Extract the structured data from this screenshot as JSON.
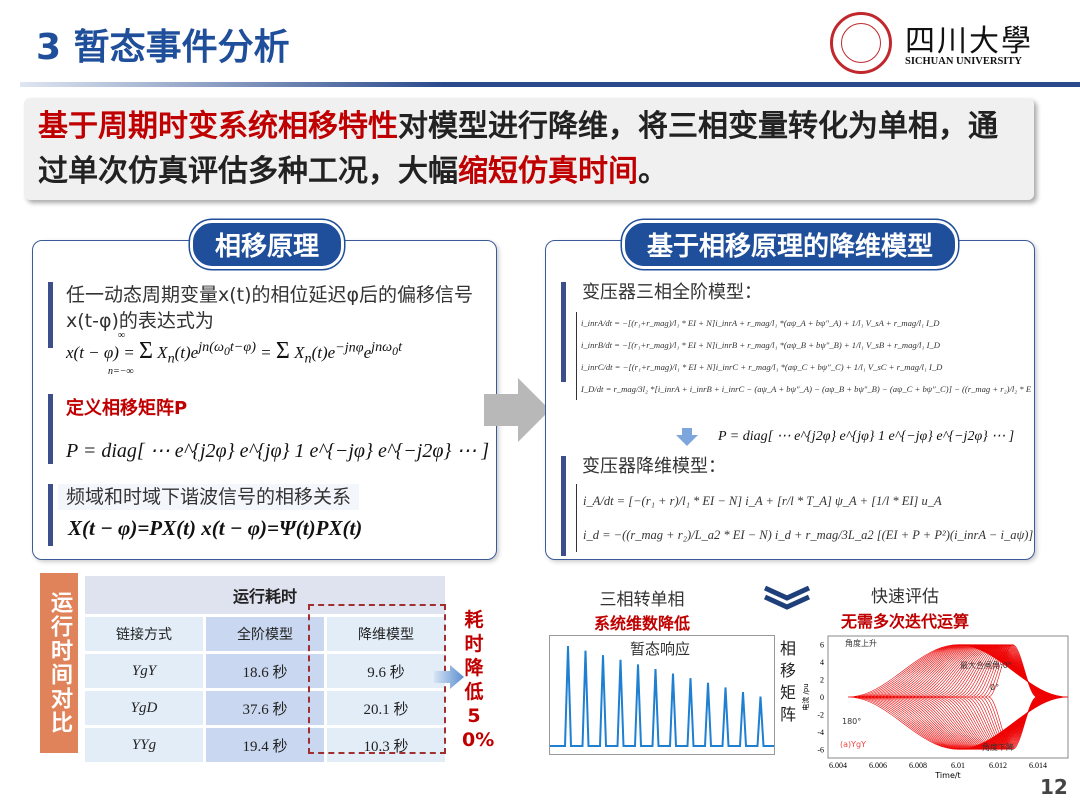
{
  "title": "3 暂态事件分析",
  "logo": {
    "name_cn": "四川大學",
    "name_en": "SICHUAN UNIVERSITY",
    "seal_text": "四川大学 1896"
  },
  "headline": {
    "part1": "基于周期时变系统相移特性",
    "part2": "对模型进行降维，将三相变量转化为单相，通过单次仿真评估多种工况，大幅",
    "part3": "缩短仿真时间",
    "part4": "。"
  },
  "left_panel": {
    "title": "相移原理",
    "intro": "任一动态周期变量x(t)的相位延迟φ后的偏移信号x(t-φ)的表达式为",
    "eq1": "x(t − φ) = Σ Xₙ(t)e^{jn(ω₀t−φ)} = Σ Xₙ(t)e^{−jnφ}e^{jnω₀t}",
    "sum_limits": {
      "upper": "∞",
      "lower": "n=−∞"
    },
    "define_label": "定义相移矩阵P",
    "eq_p": "P = diag[ ⋯  e^{j2φ}  e^{jφ}  1  e^{−jφ}  e^{−j2φ}  ⋯ ]",
    "relation_label": "频域和时域下谐波信号的相移关系",
    "eq_rel": "X(t − φ)=PX(t)   x(t − φ)=Ψ(t)PX(t)"
  },
  "right_panel": {
    "title": "基于相移原理的降维模型",
    "full_label": "变压器三相全阶模型：",
    "full_eqs": [
      "i_inrA/dt = −[(r₁+r_mag)/l₁ * EI + N]i_inrA + r_mag/l₁ *(aψ_A + bψ″_A) + 1/l₁ V_sA + r_mag/l₁ I_D",
      "i_inrB/dt = −[(r₁+r_mag)/l₁ * EI + N]i_inrB + r_mag/l₁ *(aψ_B + bψ″_B) + 1/l₁ V_sB + r_mag/l₁ I_D",
      "i_inrC/dt = −[(r₁+r_mag)/l₁ * EI + N]i_inrC + r_mag/l₁ *(aψ_C + bψ″_C) + 1/l₁ V_sC + r_mag/l₁ I_D",
      "I_D/dt = r_mag/3l₂ *[i_inrA + i_inrB + i_inrC − (aψ_A + bψ″_A) − (aψ_B + bψ″_B) − (aψ_C + bψ″_C)] − ((r_mag + r₂)/l₂ * EI + N)I_D"
    ],
    "eq_p": "P = diag[ ⋯  e^{j2φ}  e^{jφ}  1  e^{−jφ}  e^{−j2φ}  ⋯ ]",
    "reduced_label": "变压器降维模型：",
    "reduced_eqs": [
      "i_A/dt = [−(r₁ + r)/l₁ * EI − N] i_A + [r/l * T_A] ψ_A + [1/l * EI] u_A",
      "i_d = −((r_mag + r₂)/L_a2 * EI − N) i_d + r_mag/3L_a2 [(EI + P + P²)(i_inrA − i_aψ)]"
    ]
  },
  "comparison": {
    "side_label": "运行时间对比",
    "table_title": "运行耗时",
    "columns": [
      "链接方式",
      "全阶模型",
      "降维模型"
    ],
    "rows": [
      [
        "YgY",
        "18.6 秒",
        "9.6 秒"
      ],
      [
        "YgD",
        "37.6 秒",
        "20.1 秒"
      ],
      [
        "YYg",
        "19.4 秒",
        "10.3 秒"
      ]
    ],
    "reduction": "耗时降低50%"
  },
  "bottom": {
    "left_caption": "三相转单相",
    "left_highlight": "系统维数降低",
    "right_caption": "快速评估",
    "right_highlight": "无需多次迭代运算",
    "transient_title": "暂态响应",
    "matrix_label": "相移矩阵",
    "chart_data": {
      "type": "line",
      "xlabel": "Time/t",
      "ylabel": "电流 /pu",
      "xlim": [
        6.004,
        6.015
      ],
      "ylim": [
        -7,
        7
      ],
      "x_ticks": [
        "6.004",
        "6.006",
        "6.008",
        "6.01",
        "6.012",
        "6.014"
      ],
      "y_ticks": [
        "6",
        "4",
        "2",
        "0",
        "-2",
        "-4",
        "-6"
      ],
      "annotations": {
        "rise": "角度上升",
        "fall": "角度下降",
        "max": "最大合闸角:0°",
        "zero": "0°",
        "deg180": "180°",
        "case": "(a)YgY"
      }
    }
  },
  "page_number": "12",
  "colors": {
    "accent": "#1f4e9a",
    "highlight": "#c00000",
    "side": "#e0835a"
  }
}
